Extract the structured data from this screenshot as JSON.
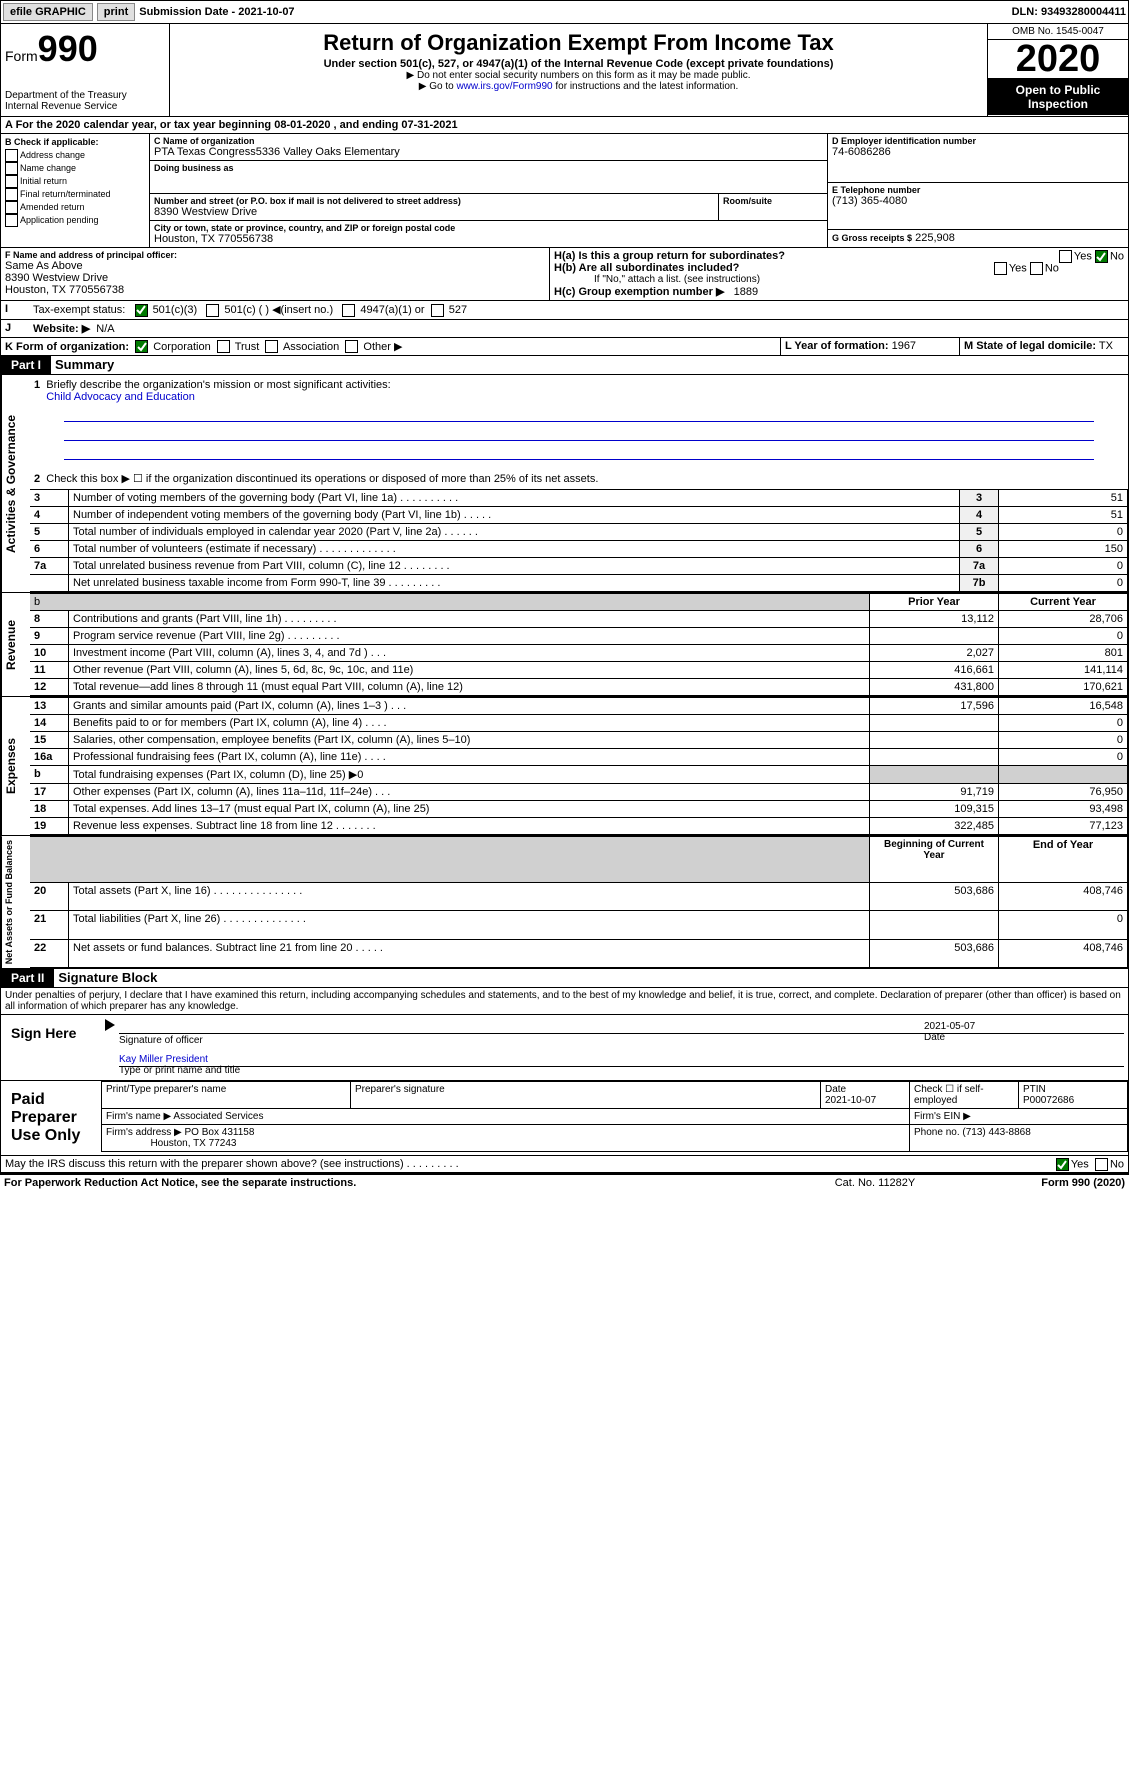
{
  "topbar": {
    "efile": "efile GRAPHIC",
    "print": "print",
    "submission_label": "Submission Date -",
    "submission_date": "2021-10-07",
    "dln_label": "DLN:",
    "dln": "93493280004411"
  },
  "header": {
    "form_label": "Form",
    "form_num": "990",
    "dept": "Department of the Treasury\nInternal Revenue Service",
    "title": "Return of Organization Exempt From Income Tax",
    "subtitle": "Under section 501(c), 527, or 4947(a)(1) of the Internal Revenue Code (except private foundations)",
    "note1": "▶ Do not enter social security numbers on this form as it may be made public.",
    "note2_pre": "▶ Go to ",
    "note2_link": "www.irs.gov/Form990",
    "note2_post": " for instructions and the latest information.",
    "omb": "OMB No. 1545-0047",
    "tax_year": "2020",
    "public": "Open to Public Inspection"
  },
  "line_a": {
    "pre": "A For the 2020 calendar year, or tax year beginning ",
    "begin": "08-01-2020",
    "mid": " , and ending ",
    "end": "07-31-2021"
  },
  "box_b": {
    "label": "B Check if applicable:",
    "items": [
      "Address change",
      "Name change",
      "Initial return",
      "Final return/terminated",
      "Amended return",
      "Application pending"
    ]
  },
  "box_c": {
    "name_label": "C Name of organization",
    "name": "PTA Texas Congress5336 Valley Oaks Elementary",
    "dba_label": "Doing business as",
    "addr_label": "Number and street (or P.O. box if mail is not delivered to street address)",
    "room_label": "Room/suite",
    "street": "8390 Westview Drive",
    "city_label": "City or town, state or province, country, and ZIP or foreign postal code",
    "city": "Houston, TX  770556738"
  },
  "box_d": {
    "label": "D Employer identification number",
    "ein": "74-6086286"
  },
  "box_e": {
    "label": "E Telephone number",
    "phone": "(713) 365-4080"
  },
  "box_g": {
    "label": "G Gross receipts $",
    "amount": "225,908"
  },
  "box_f": {
    "label": "F Name and address of principal officer:",
    "name": "Same As Above",
    "street": "8390 Westview Drive",
    "city": "Houston, TX  770556738"
  },
  "box_h": {
    "ha": "H(a)  Is this a group return for subordinates?",
    "hb": "H(b)  Are all subordinates included?",
    "hb_note": "If \"No,\" attach a list. (see instructions)",
    "hc": "H(c)  Group exemption number ▶",
    "hc_val": "1889",
    "yes": "Yes",
    "no": "No"
  },
  "box_i": {
    "label": "I",
    "text": "Tax-exempt status:",
    "c3": "501(c)(3)",
    "c": "501(c) (  ) ◀(insert no.)",
    "a1": "4947(a)(1) or",
    "s527": "527"
  },
  "box_j": {
    "label": "J",
    "text": "Website: ▶",
    "val": "N/A"
  },
  "box_k": {
    "label": "K Form of organization:",
    "corp": "Corporation",
    "trust": "Trust",
    "assoc": "Association",
    "other": "Other ▶"
  },
  "box_l": {
    "label": "L Year of formation:",
    "val": "1967"
  },
  "box_m": {
    "label": "M State of legal domicile:",
    "val": "TX"
  },
  "part1": {
    "hdr": "Part I",
    "title": "Summary",
    "side": "Activities & Governance"
  },
  "summary": {
    "q1": {
      "n": "1",
      "t": "Briefly describe the organization's mission or most significant activities:",
      "val": "Child Advocacy and Education"
    },
    "q2": {
      "n": "2",
      "t": "Check this box ▶ ☐ if the organization discontinued its operations or disposed of more than 25% of its net assets."
    },
    "rows": [
      {
        "n": "3",
        "t": "Number of voting members of the governing body (Part VI, line 1a)   .    .    .    .    .    .    .    .    .    .",
        "box": "3",
        "v": "51"
      },
      {
        "n": "4",
        "t": "Number of independent voting members of the governing body (Part VI, line 1b)  .    .    .    .    .",
        "box": "4",
        "v": "51"
      },
      {
        "n": "5",
        "t": "Total number of individuals employed in calendar year 2020 (Part V, line 2a)  .    .    .    .    .    .",
        "box": "5",
        "v": "0"
      },
      {
        "n": "6",
        "t": "Total number of volunteers (estimate if necessary)  .    .    .    .    .    .    .    .    .    .    .    .    .",
        "box": "6",
        "v": "150"
      },
      {
        "n": "7a",
        "t": "Total unrelated business revenue from Part VIII, column (C), line 12  .    .    .    .    .    .    .    .",
        "box": "7a",
        "v": "0"
      },
      {
        "n": "",
        "t": "Net unrelated business taxable income from Form 990-T, line 39  .    .    .    .    .    .    .    .    .",
        "box": "7b",
        "v": "0"
      }
    ]
  },
  "revenue": {
    "side": "Revenue",
    "hdr_prior": "Prior Year",
    "hdr_curr": "Current Year",
    "rows": [
      {
        "n": "8",
        "t": "Contributions and grants (Part VIII, line 1h)  .    .    .    .    .    .    .    .    .",
        "p": "13,112",
        "c": "28,706"
      },
      {
        "n": "9",
        "t": "Program service revenue (Part VIII, line 2g)  .    .    .    .    .    .    .    .    .",
        "p": "",
        "c": "0"
      },
      {
        "n": "10",
        "t": "Investment income (Part VIII, column (A), lines 3, 4, and 7d )   .    .    .",
        "p": "2,027",
        "c": "801"
      },
      {
        "n": "11",
        "t": "Other revenue (Part VIII, column (A), lines 5, 6d, 8c, 9c, 10c, and 11e)",
        "p": "416,661",
        "c": "141,114"
      },
      {
        "n": "12",
        "t": "Total revenue—add lines 8 through 11 (must equal Part VIII, column (A), line 12)",
        "p": "431,800",
        "c": "170,621"
      }
    ]
  },
  "expenses": {
    "side": "Expenses",
    "rows": [
      {
        "n": "13",
        "t": "Grants and similar amounts paid (Part IX, column (A), lines 1–3 )  .    .    .",
        "p": "17,596",
        "c": "16,548"
      },
      {
        "n": "14",
        "t": "Benefits paid to or for members (Part IX, column (A), line 4)  .    .    .    .",
        "p": "",
        "c": "0"
      },
      {
        "n": "15",
        "t": "Salaries, other compensation, employee benefits (Part IX, column (A), lines 5–10)",
        "p": "",
        "c": "0"
      },
      {
        "n": "16a",
        "t": "Professional fundraising fees (Part IX, column (A), line 11e)  .    .    .    .",
        "p": "",
        "c": "0"
      },
      {
        "n": "b",
        "t": "Total fundraising expenses (Part IX, column (D), line 25) ▶0",
        "p": "shade",
        "c": "shade"
      },
      {
        "n": "17",
        "t": "Other expenses (Part IX, column (A), lines 11a–11d, 11f–24e)  .    .    .",
        "p": "91,719",
        "c": "76,950"
      },
      {
        "n": "18",
        "t": "Total expenses. Add lines 13–17 (must equal Part IX, column (A), line 25)",
        "p": "109,315",
        "c": "93,498"
      },
      {
        "n": "19",
        "t": "Revenue less expenses. Subtract line 18 from line 12  .    .    .    .    .    .    .",
        "p": "322,485",
        "c": "77,123"
      }
    ]
  },
  "netassets": {
    "side": "Net Assets or Fund Balances",
    "hdr_begin": "Beginning of Current Year",
    "hdr_end": "End of Year",
    "rows": [
      {
        "n": "20",
        "t": "Total assets (Part X, line 16)  .    .    .    .    .    .    .    .    .    .    .    .    .    .    .",
        "p": "503,686",
        "c": "408,746"
      },
      {
        "n": "21",
        "t": "Total liabilities (Part X, line 26)  .    .    .    .    .    .    .    .    .    .    .    .    .    .",
        "p": "",
        "c": "0"
      },
      {
        "n": "22",
        "t": "Net assets or fund balances. Subtract line 21 from line 20  .    .    .    .    .",
        "p": "503,686",
        "c": "408,746"
      }
    ]
  },
  "part2": {
    "hdr": "Part II",
    "title": "Signature Block",
    "declaration": "Under penalties of perjury, I declare that I have examined this return, including accompanying schedules and statements, and to the best of my knowledge and belief, it is true, correct, and complete. Declaration of preparer (other than officer) is based on all information of which preparer has any knowledge."
  },
  "sign": {
    "label": "Sign Here",
    "sig_of": "Signature of officer",
    "date_label": "Date",
    "date": "2021-05-07",
    "name": "Kay Miller  President",
    "type_label": "Type or print name and title"
  },
  "paid": {
    "label": "Paid Preparer Use Only",
    "p_name_label": "Print/Type preparer's name",
    "p_sig_label": "Preparer's signature",
    "date_label": "Date",
    "date": "2021-10-07",
    "check_label": "Check ☐ if self-employed",
    "ptin_label": "PTIN",
    "ptin": "P00072686",
    "firm_name_label": "Firm's name  ▶",
    "firm_name": "Associated Services",
    "firm_ein_label": "Firm's EIN ▶",
    "firm_addr_label": "Firm's address ▶",
    "firm_addr": "PO Box 431158",
    "firm_city": "Houston, TX  77243",
    "phone_label": "Phone no.",
    "phone": "(713) 443-8868"
  },
  "discuss": {
    "text": "May the IRS discuss this return with the preparer shown above? (see instructions)   .    .    .    .    .    .    .    .    .",
    "yes": "Yes",
    "no": "No"
  },
  "footer": {
    "l": "For Paperwork Reduction Act Notice, see the separate instructions.",
    "m": "Cat. No. 11282Y",
    "r": "Form 990 (2020)"
  }
}
